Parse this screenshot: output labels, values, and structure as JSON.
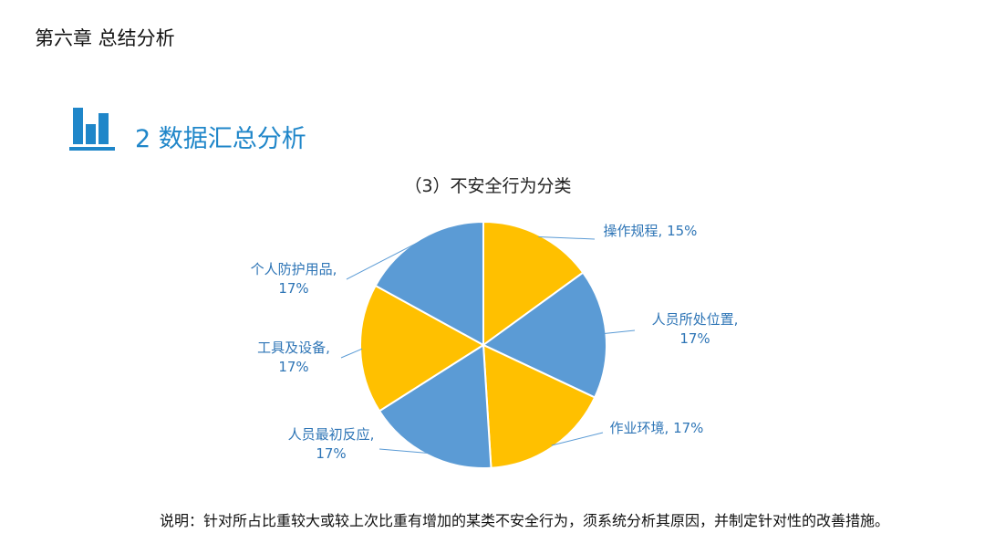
{
  "header": {
    "chapter_title": "第六章 总结分析",
    "section_title": "2 数据汇总分析",
    "icon": "bar-chart-icon"
  },
  "colors": {
    "accent": "#1f86c9",
    "gold": "#ffc000",
    "blue": "#5b9bd5",
    "label": "#2e75b6"
  },
  "chart_data": {
    "type": "pie",
    "title": "（3）不安全行为分类",
    "slices": [
      {
        "label": "操作规程",
        "value": 15,
        "percent_label": "15%",
        "color": "#ffc000"
      },
      {
        "label": "人员所处位置",
        "value": 17,
        "percent_label": "17%",
        "color": "#5b9bd5"
      },
      {
        "label": "作业环境",
        "value": 17,
        "percent_label": "17%",
        "color": "#ffc000"
      },
      {
        "label": "人员最初反应",
        "value": 17,
        "percent_label": "17%",
        "color": "#5b9bd5"
      },
      {
        "label": "工具及设备",
        "value": 17,
        "percent_label": "17%",
        "color": "#ffc000"
      },
      {
        "label": "个人防护用品",
        "value": 17,
        "percent_label": "17%",
        "color": "#5b9bd5"
      }
    ],
    "legend": "none",
    "data_labels": "outside"
  },
  "note": "说明：针对所占比重较大或较上次比重有增加的某类不安全行为，须系统分析其原因，并制定针对性的改善措施。"
}
